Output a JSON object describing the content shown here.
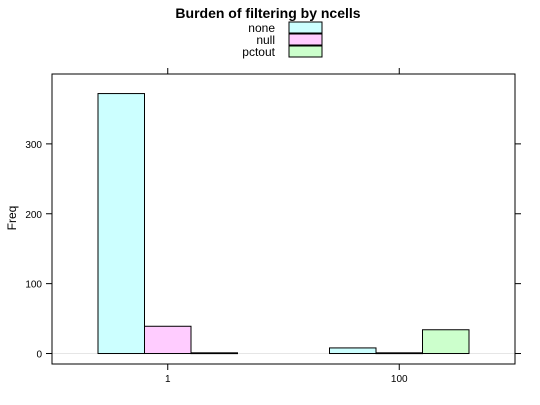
{
  "chart_data": {
    "type": "bar",
    "title": "Burden of filtering by ncells",
    "xlabel": "",
    "ylabel": "Freq",
    "categories": [
      "1",
      "100"
    ],
    "series": [
      {
        "name": "none",
        "values": [
          372,
          8
        ],
        "color": "#CCFFFF"
      },
      {
        "name": "null",
        "values": [
          39,
          1
        ],
        "color": "#FFCCFF"
      },
      {
        "name": "pctout",
        "values": [
          1,
          34
        ],
        "color": "#CCFFCC"
      }
    ],
    "ylim": [
      -15,
      400
    ],
    "yticks": [
      0,
      100,
      200,
      300
    ],
    "legend_position": "top",
    "grid": false,
    "zero_line_color": "#E6E6E6"
  }
}
